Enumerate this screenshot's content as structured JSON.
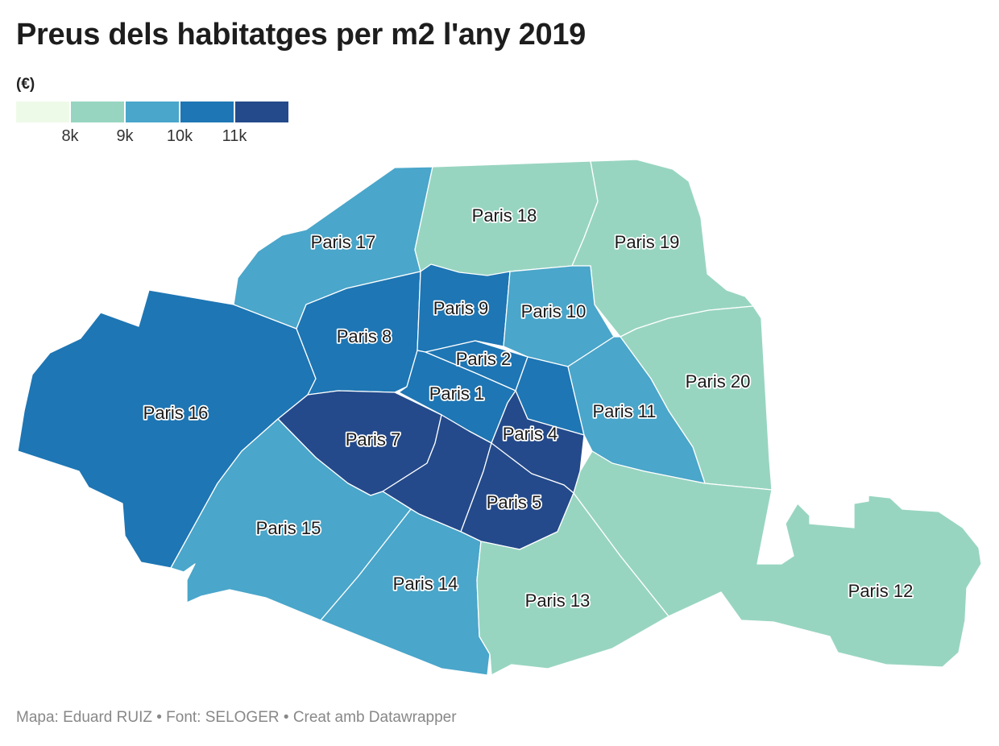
{
  "title": "Preus dels habitatges per m2 l'any 2019",
  "unit": "(€)",
  "legend": {
    "bins": [
      {
        "color": "#eefae8"
      },
      {
        "color": "#98d5c1"
      },
      {
        "color": "#4aa6ca"
      },
      {
        "color": "#1e76b4"
      },
      {
        "color": "#244a8b"
      }
    ],
    "ticks": [
      "8k",
      "9k",
      "10k",
      "11k"
    ]
  },
  "districts": [
    {
      "id": "p1",
      "label": "Paris 1",
      "color": "#1e76b4"
    },
    {
      "id": "p2",
      "label": "Paris 2",
      "color": "#1e76b4"
    },
    {
      "id": "p3",
      "label": "",
      "color": "#1e76b4"
    },
    {
      "id": "p4",
      "label": "Paris 4",
      "color": "#244a8b"
    },
    {
      "id": "p5",
      "label": "Paris 5",
      "color": "#244a8b"
    },
    {
      "id": "p6",
      "label": "",
      "color": "#244a8b"
    },
    {
      "id": "p7",
      "label": "Paris 7",
      "color": "#244a8b"
    },
    {
      "id": "p8",
      "label": "Paris 8",
      "color": "#1e76b4"
    },
    {
      "id": "p9",
      "label": "Paris 9",
      "color": "#1e76b4"
    },
    {
      "id": "p10",
      "label": "Paris 10",
      "color": "#4aa6ca"
    },
    {
      "id": "p11",
      "label": "Paris 11",
      "color": "#4aa6ca"
    },
    {
      "id": "p12",
      "label": "Paris 12",
      "color": "#98d5c1"
    },
    {
      "id": "p13",
      "label": "Paris 13",
      "color": "#98d5c1"
    },
    {
      "id": "p14",
      "label": "Paris 14",
      "color": "#4aa6ca"
    },
    {
      "id": "p15",
      "label": "Paris 15",
      "color": "#4aa6ca"
    },
    {
      "id": "p16",
      "label": "Paris 16",
      "color": "#1e76b4"
    },
    {
      "id": "p17",
      "label": "Paris 17",
      "color": "#4aa6ca"
    },
    {
      "id": "p18",
      "label": "Paris 18",
      "color": "#98d5c1"
    },
    {
      "id": "p19",
      "label": "Paris 19",
      "color": "#98d5c1"
    },
    {
      "id": "p20",
      "label": "Paris 20",
      "color": "#98d5c1"
    }
  ],
  "footer": "Mapa: Eduard RUIZ • Font: SELOGER • Creat amb Datawrapper"
}
